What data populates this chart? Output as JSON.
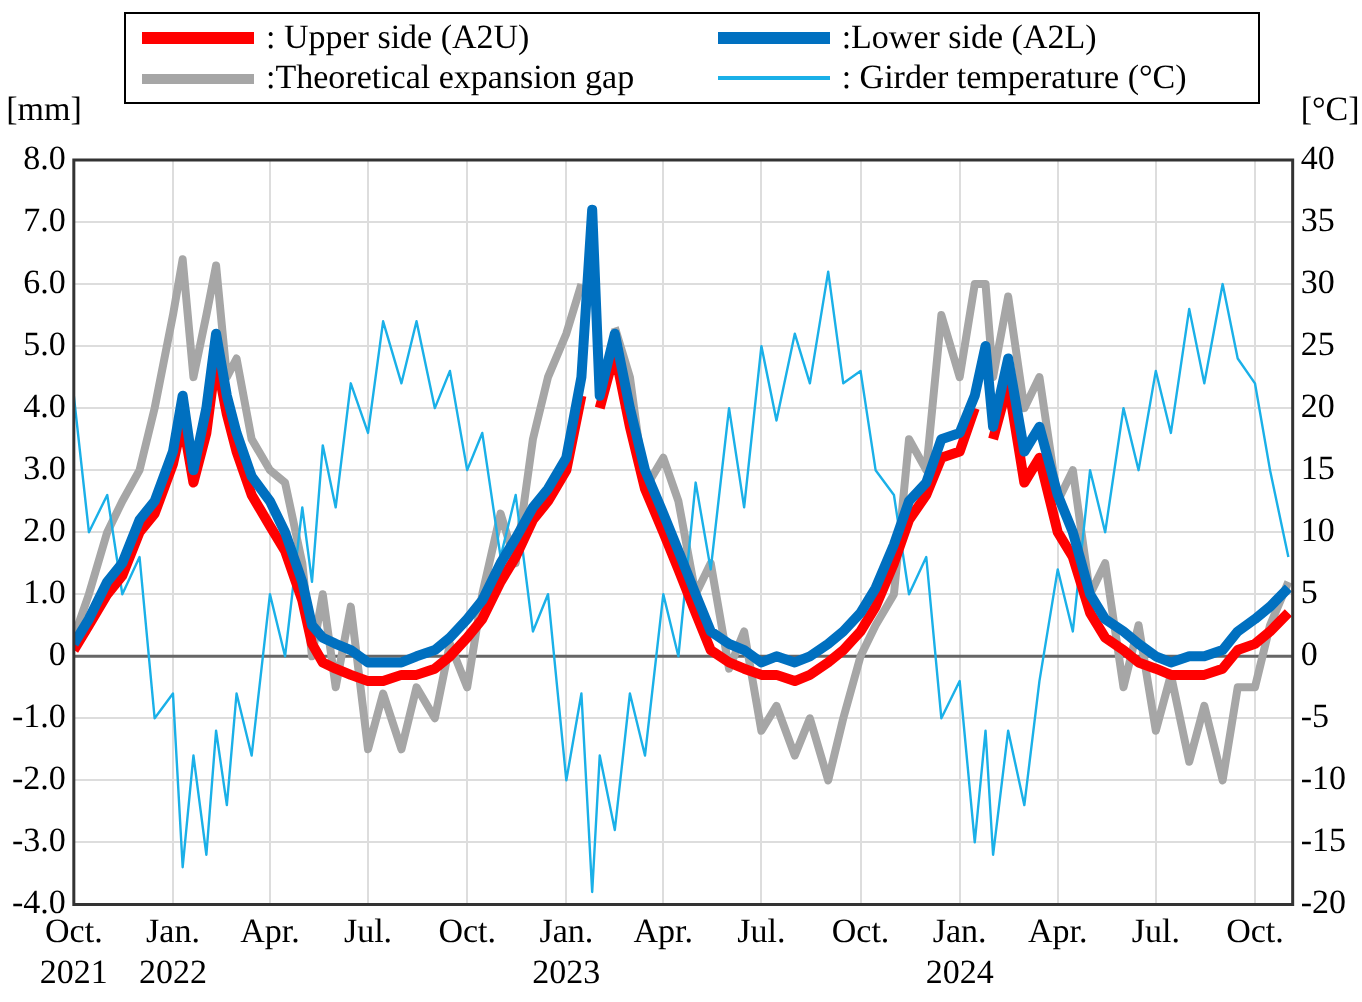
{
  "chart_data": {
    "type": "line",
    "ylabel": "[mm]",
    "y2label": "[°C]",
    "x": [
      "2021-10-01",
      "2021-10-15",
      "2021-11-01",
      "2021-11-15",
      "2021-12-01",
      "2021-12-15",
      "2022-01-01",
      "2022-01-10",
      "2022-01-20",
      "2022-02-01",
      "2022-02-10",
      "2022-02-20",
      "2022-03-01",
      "2022-03-15",
      "2022-04-01",
      "2022-04-15",
      "2022-05-01",
      "2022-05-10",
      "2022-05-20",
      "2022-06-01",
      "2022-06-15",
      "2022-07-01",
      "2022-07-15",
      "2022-08-01",
      "2022-08-15",
      "2022-09-01",
      "2022-09-15",
      "2022-10-01",
      "2022-10-15",
      "2022-11-01",
      "2022-11-15",
      "2022-12-01",
      "2022-12-15",
      "2023-01-01",
      "2023-01-15",
      "2023-01-25",
      "2023-02-01",
      "2023-02-15",
      "2023-03-01",
      "2023-03-15",
      "2023-04-01",
      "2023-04-15",
      "2023-05-01",
      "2023-05-15",
      "2023-06-01",
      "2023-06-15",
      "2023-07-01",
      "2023-07-15",
      "2023-08-01",
      "2023-08-15",
      "2023-09-01",
      "2023-09-15",
      "2023-10-01",
      "2023-10-15",
      "2023-11-01",
      "2023-11-15",
      "2023-12-01",
      "2023-12-15",
      "2024-01-01",
      "2024-01-15",
      "2024-01-25",
      "2024-02-01",
      "2024-02-15",
      "2024-03-01",
      "2024-03-15",
      "2024-04-01",
      "2024-04-15",
      "2024-05-01",
      "2024-05-15",
      "2024-06-01",
      "2024-06-15",
      "2024-07-01",
      "2024-07-15",
      "2024-08-01",
      "2024-08-15",
      "2024-09-01",
      "2024-09-15",
      "2024-10-01",
      "2024-10-15",
      "2024-11-01"
    ],
    "series": [
      {
        "name": ": Upper side (A2U)",
        "color": "#ff0000",
        "values": [
          0.1,
          0.5,
          1.0,
          1.3,
          2.0,
          2.3,
          3.1,
          3.8,
          2.8,
          3.6,
          4.8,
          3.9,
          3.3,
          2.6,
          2.1,
          1.7,
          0.9,
          0.2,
          -0.1,
          -0.2,
          -0.3,
          -0.4,
          -0.4,
          -0.3,
          -0.3,
          -0.2,
          0.0,
          0.3,
          0.6,
          1.2,
          1.6,
          2.2,
          2.5,
          3.0,
          4.2,
          null,
          4.0,
          4.9,
          3.7,
          2.7,
          2.0,
          1.4,
          0.7,
          0.1,
          -0.1,
          -0.2,
          -0.3,
          -0.3,
          -0.4,
          -0.3,
          -0.1,
          0.1,
          0.4,
          0.8,
          1.5,
          2.2,
          2.6,
          3.2,
          3.3,
          4.0,
          null,
          3.5,
          4.4,
          2.8,
          3.2,
          2.0,
          1.6,
          0.7,
          0.3,
          0.1,
          -0.1,
          -0.2,
          -0.3,
          -0.3,
          -0.3,
          -0.2,
          0.1,
          0.2,
          0.4,
          0.7
        ]
      },
      {
        "name": ":Lower side (A2L)",
        "color": "#0070c0",
        "values": [
          0.2,
          0.6,
          1.2,
          1.5,
          2.2,
          2.5,
          3.3,
          4.2,
          3.0,
          4.0,
          5.2,
          4.2,
          3.6,
          2.9,
          2.5,
          2.0,
          1.2,
          0.5,
          0.3,
          0.2,
          0.1,
          -0.1,
          -0.1,
          -0.1,
          0.0,
          0.1,
          0.3,
          0.6,
          0.9,
          1.5,
          1.9,
          2.4,
          2.7,
          3.2,
          4.5,
          7.2,
          4.2,
          5.2,
          4.0,
          3.0,
          2.3,
          1.7,
          1.0,
          0.4,
          0.2,
          0.1,
          -0.1,
          0.0,
          -0.1,
          0.0,
          0.2,
          0.4,
          0.7,
          1.1,
          1.8,
          2.5,
          2.8,
          3.5,
          3.6,
          4.2,
          5.0,
          3.7,
          4.8,
          3.3,
          3.7,
          2.6,
          2.0,
          1.0,
          0.6,
          0.4,
          0.2,
          0.0,
          -0.1,
          0.0,
          0.0,
          0.1,
          0.4,
          0.6,
          0.8,
          1.1
        ]
      },
      {
        "name": ":Theoretical expansion gap",
        "color": "#a6a6a6",
        "values": [
          0.3,
          1.0,
          2.0,
          2.5,
          3.0,
          4.0,
          5.5,
          6.4,
          4.5,
          5.5,
          6.3,
          4.5,
          4.8,
          3.5,
          3.0,
          2.8,
          1.5,
          0.0,
          1.0,
          -0.5,
          0.8,
          -1.5,
          -0.6,
          -1.5,
          -0.5,
          -1.0,
          0.2,
          -0.5,
          1.0,
          2.3,
          1.5,
          3.5,
          4.5,
          5.2,
          6.0,
          null,
          null,
          5.3,
          4.5,
          2.7,
          3.2,
          2.5,
          1.0,
          1.5,
          -0.2,
          0.4,
          -1.2,
          -0.8,
          -1.6,
          -1.0,
          -2.0,
          -1.0,
          0.0,
          0.5,
          1.0,
          3.5,
          3.0,
          5.5,
          4.5,
          6.0,
          6.0,
          4.5,
          5.8,
          4.0,
          4.5,
          2.5,
          3.0,
          1.0,
          1.5,
          -0.5,
          0.5,
          -1.2,
          -0.3,
          -1.7,
          -0.8,
          -2.0,
          -0.5,
          -0.5,
          0.5,
          1.2
        ]
      },
      {
        "name": ": Girder temperature (°C)",
        "color": "#1ab0e8",
        "axis": "y2",
        "values": [
          21,
          10,
          13,
          5,
          8,
          -5,
          -3,
          -17,
          -8,
          -16,
          -6,
          -12,
          -3,
          -8,
          5,
          0,
          12,
          6,
          17,
          12,
          22,
          18,
          27,
          22,
          27,
          20,
          23,
          15,
          18,
          8,
          13,
          2,
          5,
          -10,
          -3,
          -19,
          -8,
          -14,
          -3,
          -8,
          5,
          0,
          14,
          7,
          20,
          12,
          25,
          19,
          26,
          22,
          31,
          22,
          23,
          15,
          13,
          5,
          8,
          -5,
          -2,
          -15,
          -6,
          -16,
          -6,
          -12,
          -2,
          7,
          2,
          15,
          10,
          20,
          15,
          23,
          18,
          28,
          22,
          30,
          24,
          22,
          15,
          8
        ]
      }
    ],
    "xlim": [
      "2021-10-01",
      "2024-11-05"
    ],
    "xticks": [
      {
        "value": "2021-10-01",
        "label": "Oct.\n2021"
      },
      {
        "value": "2022-01-01",
        "label": "Jan.\n2022"
      },
      {
        "value": "2022-04-01",
        "label": "Apr."
      },
      {
        "value": "2022-07-01",
        "label": "Jul."
      },
      {
        "value": "2022-10-01",
        "label": "Oct."
      },
      {
        "value": "2023-01-01",
        "label": "Jan.\n2023"
      },
      {
        "value": "2023-04-01",
        "label": "Apr."
      },
      {
        "value": "2023-07-01",
        "label": "Jul."
      },
      {
        "value": "2023-10-01",
        "label": "Oct."
      },
      {
        "value": "2024-01-01",
        "label": "Jan.\n2024"
      },
      {
        "value": "2024-04-01",
        "label": "Apr."
      },
      {
        "value": "2024-07-01",
        "label": "Jul."
      },
      {
        "value": "2024-10-01",
        "label": "Oct."
      }
    ],
    "ylim": [
      -4,
      8
    ],
    "yticks": [
      {
        "value": -4,
        "label": "-4.0"
      },
      {
        "value": -3,
        "label": "-3.0"
      },
      {
        "value": -2,
        "label": "-2.0"
      },
      {
        "value": -1,
        "label": "-1.0"
      },
      0,
      {
        "value": 1,
        "label": "1.0"
      },
      {
        "value": 2,
        "label": "2.0"
      },
      {
        "value": 3,
        "label": "3.0"
      },
      {
        "value": 4,
        "label": "4.0"
      },
      {
        "value": 5,
        "label": "5.0"
      },
      {
        "value": 6,
        "label": "6.0"
      },
      {
        "value": 7,
        "label": "7.0"
      },
      {
        "value": 8,
        "label": "8.0"
      }
    ],
    "y2lim": [
      -20,
      40
    ],
    "y2ticks": [
      -20,
      -15,
      -10,
      -5,
      0,
      5,
      10,
      15,
      20,
      25,
      30,
      35,
      40
    ],
    "ref_lines": [
      {
        "axis": "y",
        "value": 0,
        "color": "#666666"
      }
    ],
    "grid": true,
    "legend": "top",
    "marker": "none",
    "line_style": "solid"
  }
}
